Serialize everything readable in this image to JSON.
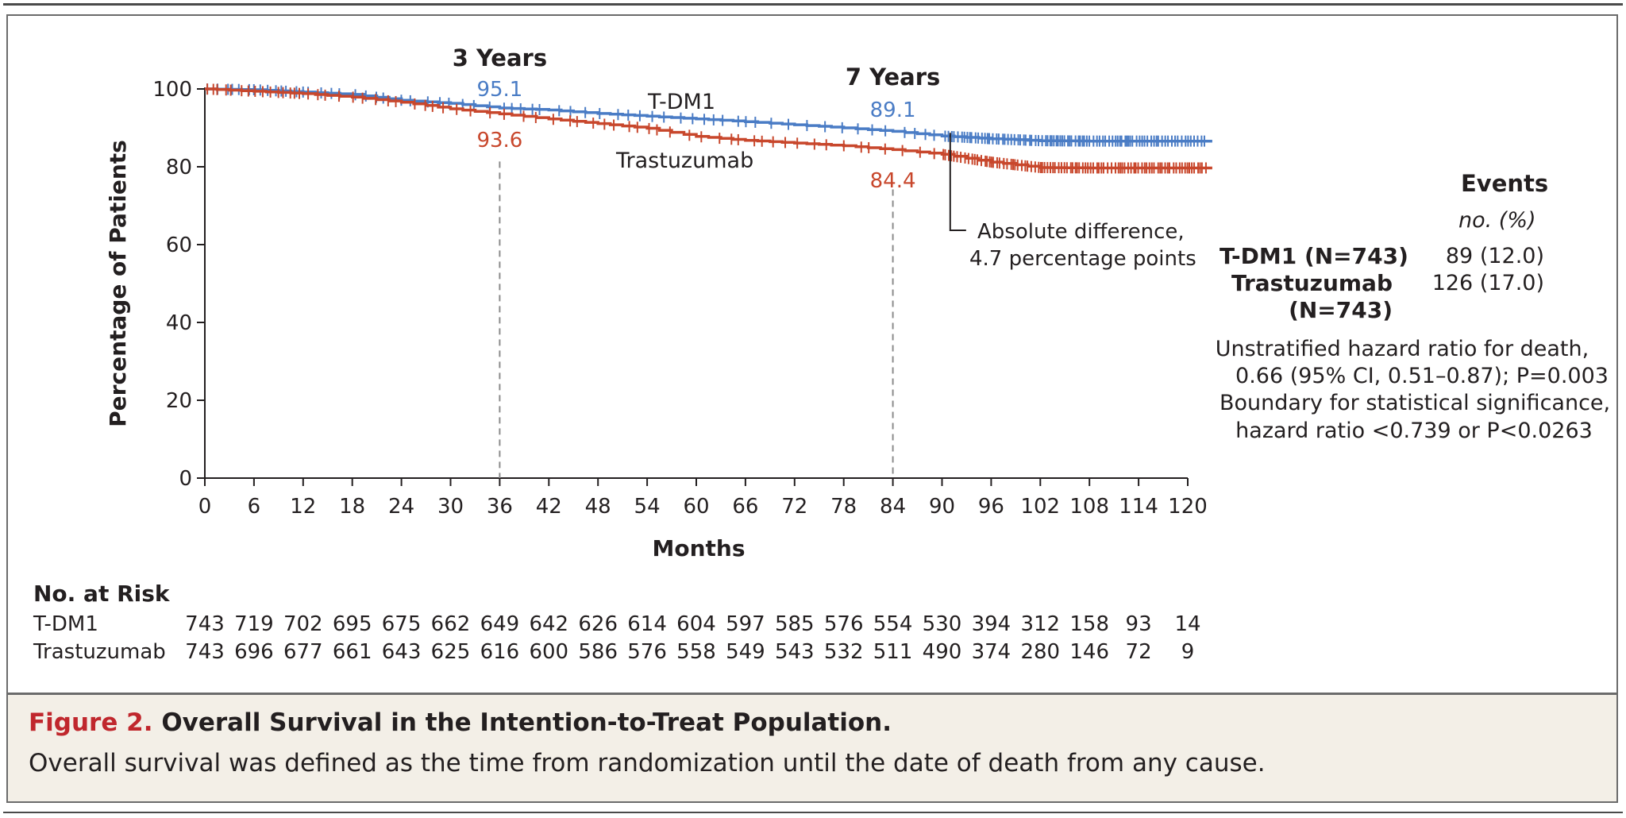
{
  "chart_data": {
    "type": "line",
    "xlabel": "Months",
    "ylabel": "Percentage of Patients",
    "xlim": [
      0,
      120
    ],
    "ylim": [
      0,
      100
    ],
    "x_ticks": [
      "0",
      "6",
      "12",
      "18",
      "24",
      "30",
      "36",
      "42",
      "48",
      "54",
      "60",
      "66",
      "72",
      "78",
      "84",
      "90",
      "96",
      "102",
      "108",
      "114",
      "120"
    ],
    "y_ticks": [
      "0",
      "20",
      "40",
      "60",
      "80",
      "100"
    ],
    "grid": false,
    "series": [
      {
        "name": "T-DM1",
        "color": "#4a7cc5",
        "x": [
          0,
          6,
          12,
          18,
          24,
          30,
          36,
          42,
          48,
          54,
          60,
          66,
          72,
          78,
          84,
          90,
          96,
          102,
          108,
          114,
          123
        ],
        "y": [
          100,
          99.8,
          99.2,
          98.6,
          97.1,
          96.3,
          95.1,
          94.6,
          93.7,
          93.0,
          92.3,
          91.6,
          90.8,
          90.0,
          89.1,
          87.9,
          87.2,
          86.7,
          86.6,
          86.6,
          86.6
        ]
      },
      {
        "name": "Trastuzumab",
        "color": "#c8472c",
        "x": [
          0,
          6,
          12,
          18,
          24,
          30,
          36,
          42,
          48,
          54,
          60,
          66,
          72,
          78,
          84,
          90,
          96,
          102,
          108,
          114,
          123
        ],
        "y": [
          100,
          99.4,
          98.8,
          97.9,
          96.6,
          94.9,
          93.6,
          92.3,
          91.1,
          89.9,
          87.8,
          86.8,
          86.1,
          85.4,
          84.4,
          83.2,
          81.2,
          79.8,
          79.7,
          79.7,
          79.7
        ]
      }
    ],
    "annotations": {
      "year3": {
        "label": "3 Years",
        "month": 36,
        "tdm1": "95.1",
        "trastuzumab": "93.6"
      },
      "year7": {
        "label": "7 Years",
        "month": 84,
        "tdm1": "89.1",
        "trastuzumab": "84.4"
      },
      "series_labels": {
        "tdm1": "T-DM1",
        "trastuzumab": "Trastuzumab"
      },
      "difference_line1": "Absolute difference,",
      "difference_line2": "4.7 percentage points"
    },
    "risk_table": {
      "title": "No. at Risk",
      "rows": [
        {
          "label": "T-DM1",
          "values": [
            "743",
            "719",
            "702",
            "695",
            "675",
            "662",
            "649",
            "642",
            "626",
            "614",
            "604",
            "597",
            "585",
            "576",
            "554",
            "530",
            "394",
            "312",
            "158",
            "93",
            "14"
          ]
        },
        {
          "label": "Trastuzumab",
          "values": [
            "743",
            "696",
            "677",
            "661",
            "643",
            "625",
            "616",
            "600",
            "586",
            "576",
            "558",
            "549",
            "543",
            "532",
            "511",
            "490",
            "374",
            "280",
            "146",
            "72",
            "9"
          ]
        }
      ]
    }
  },
  "events_table": {
    "title": "Events",
    "subtitle": "no. (%)",
    "rows": [
      {
        "label": "T-DM1 (N=743)",
        "value": "89 (12.0)"
      },
      {
        "label": "Trastuzumab",
        "label2": "(N=743)",
        "value": "126 (17.0)"
      }
    ]
  },
  "stats": {
    "line1": "Unstratified hazard ratio for death,",
    "line2": "0.66 (95% CI, 0.51–0.87); P=0.003",
    "line3": "Boundary for statistical significance,",
    "line4": "hazard ratio <0.739 or P<0.0263"
  },
  "caption": {
    "figure_label": "Figure 2.",
    "title": "Overall Survival in the Intention-to-Treat Population.",
    "body": "Overall survival was defined as the time from randomization until the date of death from any cause."
  }
}
